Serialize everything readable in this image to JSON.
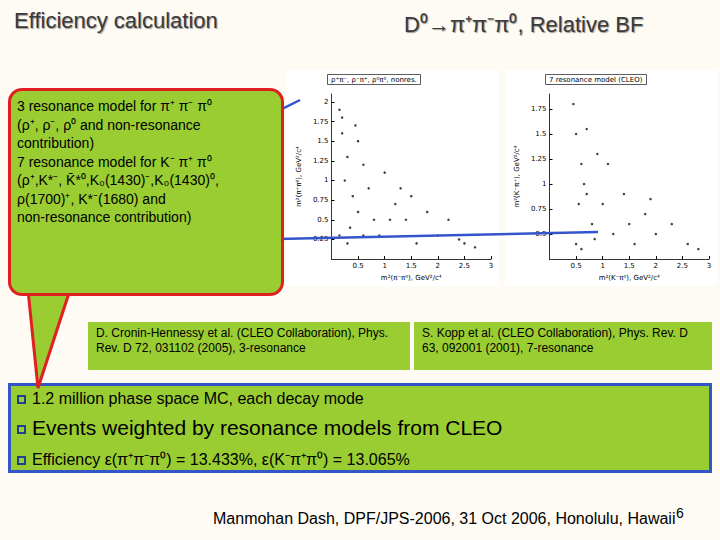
{
  "header": {
    "title": "Efficiency calculation",
    "subtitle": "D⁰→π⁺π⁻π⁰, Relative BF"
  },
  "callout": [
    "3 resonance model for π⁺ π⁻ π⁰",
    "(ρ⁺, ρ⁻, ρ⁰ and non-resonance",
    "contribution)",
    "7 resonance model for K⁻ π⁺ π⁰",
    "(ρ⁺,K*⁻, K̄*⁰,K₀(1430)⁻,K₀(1430)⁰,",
    "ρ(1700)⁺, K*⁻(1680) and",
    "non-resonance contribution)"
  ],
  "references": [
    "D. Cronin-Hennessy et al. (CLEO Collaboration), Phys. Rev. D 72, 031102 (2005), 3-resonance",
    "S. Kopp et al. (CLEO Collaboration), Phys. Rev. D 63, 092001 (2001), 7-resonance"
  ],
  "bullets": [
    "1.2 million phase space MC, each decay mode",
    "Events weighted by resonance models from CLEO",
    "Efficiency ε(π⁺π⁻π⁰) = 13.433%, ε(K⁻π⁺π⁰) = 13.065%"
  ],
  "footer": "Manmohan Dash, DPF/JPS-2006, 31 Oct 2006, Honolulu, Hawaii",
  "page": "6",
  "chart_data": [
    {
      "type": "scatter",
      "title": "ρ⁺π⁻, ρ⁻π⁺, ρ⁰π⁰, nonres.",
      "x_label": "m²(π⁻π⁰), GeV²/c⁴",
      "y_label": "m²(π⁺π⁰), GeV²/c⁴",
      "xlim": [
        0,
        3
      ],
      "ylim": [
        0,
        2.1
      ],
      "xticks": [
        0.5,
        1,
        1.5,
        2,
        2.5,
        3
      ],
      "yticks": [
        0.25,
        0.5,
        0.75,
        1,
        1.25,
        1.5,
        1.75,
        2
      ],
      "x": [
        0.15,
        0.2,
        0.3,
        0.25,
        0.4,
        0.5,
        0.35,
        0.6,
        0.8,
        0.7,
        1.0,
        1.2,
        0.9,
        1.4,
        1.6,
        1.3,
        1.8,
        2.0,
        2.2,
        2.5,
        2.7,
        0.5,
        0.6,
        1.1,
        1.5,
        0.3,
        0.2,
        0.45,
        0.15,
        2.4
      ],
      "y": [
        1.9,
        1.6,
        1.3,
        1.0,
        0.8,
        0.6,
        0.4,
        0.3,
        0.5,
        0.9,
        1.1,
        0.7,
        0.3,
        0.5,
        0.2,
        0.9,
        0.6,
        0.3,
        0.5,
        0.2,
        0.15,
        1.5,
        1.2,
        0.5,
        0.8,
        0.2,
        1.8,
        1.7,
        0.3,
        0.25
      ],
      "color": "#111111",
      "marker": "circle"
    },
    {
      "type": "scatter",
      "title": "7 resonance model (CLEO)",
      "x_label": "m²(K⁻π⁰), GeV²/c⁴",
      "y_label": "m²(K⁻π⁺), GeV²/c⁴",
      "xlim": [
        0,
        3
      ],
      "ylim": [
        0.25,
        1.9
      ],
      "xticks": [
        0.5,
        1,
        1.5,
        2,
        2.5,
        3
      ],
      "yticks": [
        0.5,
        0.75,
        1,
        1.25,
        1.5,
        1.75
      ],
      "x": [
        0.45,
        0.5,
        0.6,
        0.7,
        0.8,
        0.5,
        1.0,
        1.2,
        0.9,
        1.4,
        1.6,
        1.8,
        2.0,
        2.3,
        2.6,
        0.6,
        0.7,
        1.1,
        1.5,
        0.55,
        0.65,
        2.8,
        1.9,
        0.85
      ],
      "y": [
        1.8,
        1.5,
        1.2,
        0.9,
        0.6,
        0.4,
        0.8,
        0.5,
        1.3,
        0.9,
        0.4,
        0.7,
        0.5,
        0.6,
        0.4,
        0.35,
        1.55,
        1.2,
        0.6,
        0.8,
        1.0,
        0.35,
        0.85,
        0.45
      ],
      "color": "#111111",
      "marker": "circle"
    }
  ]
}
